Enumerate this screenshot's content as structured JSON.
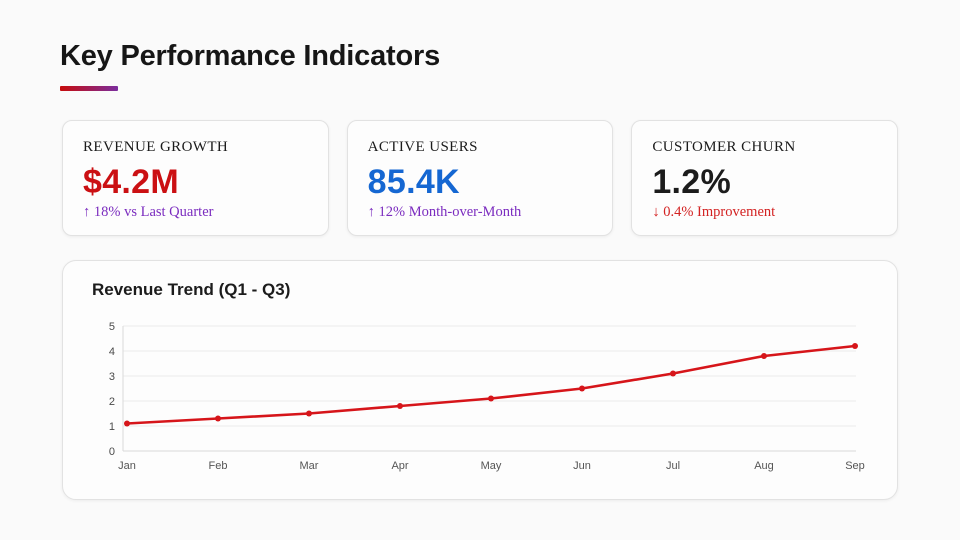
{
  "header": {
    "title": "Key Performance Indicators",
    "underline_gradient_from": "#c60c0c",
    "underline_gradient_to": "#7b2d9e"
  },
  "kpis": [
    {
      "label": "REVENUE GROWTH",
      "value": "$4.2M",
      "value_color": "#cb1013",
      "change": "↑ 18% vs Last Quarter",
      "change_color": "#7b2cbf"
    },
    {
      "label": "ACTIVE USERS",
      "value": "85.4K",
      "value_color": "#1567d2",
      "change": "↑ 12% Month-over-Month",
      "change_color": "#7b2cbf"
    },
    {
      "label": "CUSTOMER CHURN",
      "value": "1.2%",
      "value_color": "#1c1c1c",
      "change": "↓ 0.4% Improvement",
      "change_color": "#d32222"
    }
  ],
  "chart_data": {
    "type": "line",
    "title": "Revenue Trend (Q1 - Q3)",
    "categories": [
      "Jan",
      "Feb",
      "Mar",
      "Apr",
      "May",
      "Jun",
      "Jul",
      "Aug",
      "Sep"
    ],
    "values": [
      1.1,
      1.3,
      1.5,
      1.8,
      2.1,
      2.5,
      3.1,
      3.8,
      4.2
    ],
    "xlabel": "",
    "ylabel": "",
    "ylim": [
      0,
      5
    ],
    "yticks": [
      0,
      1,
      2,
      3,
      4,
      5
    ],
    "grid": true,
    "legend": false,
    "line_color": "#d6151a",
    "marker": "dot",
    "grid_color": "#ececec",
    "axis_color": "#d9d9d9",
    "tick_label_color": "#4a4a4a"
  }
}
